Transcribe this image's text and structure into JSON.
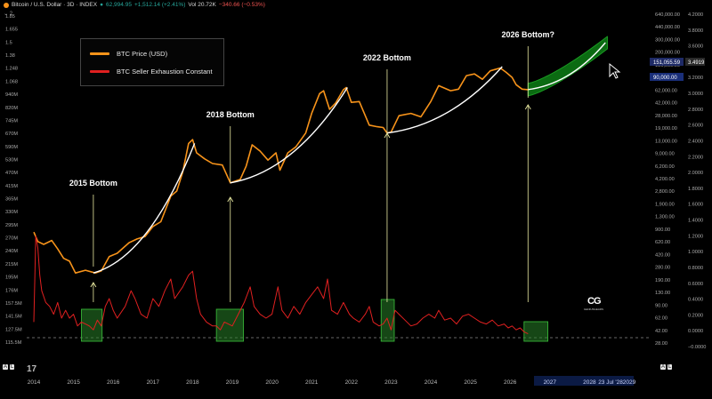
{
  "header": {
    "symbol": "Bitcoin / U.S. Dollar · 3D · INDEX",
    "last": "62,994.95",
    "change": "+1,512.14 (+2.41%)",
    "vol": "Vol 20.72K",
    "vol_change": "−340.66 (−0.53%)",
    "sub": "⌄ 2"
  },
  "legend": {
    "price": "BTC Price (USD)",
    "sec": "BTC Seller Exhaustion Constant"
  },
  "bottom_left": [
    "A",
    "L"
  ],
  "bottom_right": [
    "A",
    "L"
  ],
  "tv_logo": "17",
  "watermark": {
    "mark": "CG",
    "sub": "GENIUSGEARS"
  },
  "colors": {
    "price": "#f7931a",
    "sec": "#e02020",
    "fit": "#ffffff",
    "arrow": "#e8e8a0",
    "box": "#2e8b2e",
    "projection": "#0b6b12",
    "bg": "#000000"
  },
  "chart_data": {
    "type": "line",
    "title": "",
    "x_ticks": [
      "2014",
      "2015",
      "2016",
      "2017",
      "2018",
      "2019",
      "2020",
      "2021",
      "2022",
      "2023",
      "2024",
      "2025",
      "2026",
      "2027",
      "2028",
      "2029"
    ],
    "x_tick_time_label": "23 Jul '28",
    "y_left_ticks": [
      "1.85",
      "1.655",
      "1.5",
      "1.38",
      "1.248",
      "1.068",
      "940M",
      "820M",
      "745M",
      "670M",
      "590M",
      "530M",
      "470M",
      "415M",
      "365M",
      "330M",
      "295M",
      "270M",
      "240M",
      "215M",
      "195M",
      "176M",
      "157.5M",
      "141.5M",
      "127.5M",
      "115.5M"
    ],
    "y_price_ticks": [
      "640,000.00",
      "440,000.00",
      "300,000.00",
      "200,000.00",
      "136,000.00",
      "90,000.00",
      "62,000.00",
      "42,000.00",
      "28,000.00",
      "19,000.00",
      "13,000.00",
      "9,000.00",
      "6,200.00",
      "4,200.00",
      "2,800.00",
      "1,900.00",
      "1,300.00",
      "900.00",
      "620.00",
      "420.00",
      "280.00",
      "190.00",
      "130.00",
      "90.00",
      "62.00",
      "42.00",
      "28.00"
    ],
    "y_sec_ticks": [
      "4.2000",
      "3.8000",
      "3.6000",
      "3.4000",
      "3.2000",
      "3.0000",
      "2.8000",
      "2.6000",
      "2.4000",
      "2.2000",
      "2.0000",
      "1.8000",
      "1.6000",
      "1.4000",
      "1.2000",
      "1.0000",
      "0.8000",
      "0.6000",
      "0.4000",
      "0.2000",
      "0.0000",
      "−0.0000"
    ],
    "price_badge": "151,055.59",
    "price_badge2": "90,000.00",
    "sec_badge": "3.4919",
    "series": [
      {
        "name": "BTC Price (USD)",
        "color": "#f7931a",
        "points": [
          [
            2014.0,
            800
          ],
          [
            2014.1,
            600
          ],
          [
            2014.25,
            550
          ],
          [
            2014.45,
            620
          ],
          [
            2014.6,
            480
          ],
          [
            2014.75,
            360
          ],
          [
            2014.9,
            330
          ],
          [
            2015.05,
            230
          ],
          [
            2015.3,
            250
          ],
          [
            2015.55,
            230
          ],
          [
            2015.7,
            245
          ],
          [
            2015.9,
            380
          ],
          [
            2016.1,
            420
          ],
          [
            2016.4,
            580
          ],
          [
            2016.6,
            650
          ],
          [
            2016.8,
            700
          ],
          [
            2017.0,
            950
          ],
          [
            2017.2,
            1100
          ],
          [
            2017.45,
            2400
          ],
          [
            2017.6,
            2800
          ],
          [
            2017.75,
            5000
          ],
          [
            2017.9,
            12000
          ],
          [
            2018.0,
            13500
          ],
          [
            2018.1,
            9000
          ],
          [
            2018.3,
            7500
          ],
          [
            2018.5,
            6500
          ],
          [
            2018.75,
            6200
          ],
          [
            2018.95,
            3600
          ],
          [
            2019.2,
            4000
          ],
          [
            2019.35,
            6000
          ],
          [
            2019.5,
            11500
          ],
          [
            2019.7,
            9500
          ],
          [
            2019.9,
            7200
          ],
          [
            2020.1,
            9000
          ],
          [
            2020.2,
            5300
          ],
          [
            2020.4,
            9000
          ],
          [
            2020.6,
            10800
          ],
          [
            2020.85,
            16500
          ],
          [
            2021.0,
            30000
          ],
          [
            2021.2,
            55000
          ],
          [
            2021.3,
            60000
          ],
          [
            2021.45,
            34000
          ],
          [
            2021.6,
            41000
          ],
          [
            2021.8,
            62000
          ],
          [
            2021.87,
            66000
          ],
          [
            2022.0,
            42000
          ],
          [
            2022.2,
            43000
          ],
          [
            2022.45,
            21000
          ],
          [
            2022.65,
            20000
          ],
          [
            2022.8,
            19500
          ],
          [
            2022.9,
            16500
          ],
          [
            2023.0,
            17000
          ],
          [
            2023.2,
            28000
          ],
          [
            2023.5,
            30000
          ],
          [
            2023.75,
            27000
          ],
          [
            2024.0,
            43000
          ],
          [
            2024.2,
            70000
          ],
          [
            2024.5,
            60000
          ],
          [
            2024.7,
            63000
          ],
          [
            2024.9,
            95000
          ],
          [
            2025.1,
            100000
          ],
          [
            2025.3,
            85000
          ],
          [
            2025.5,
            110000
          ],
          [
            2025.75,
            120000
          ],
          [
            2025.9,
            105000
          ],
          [
            2026.05,
            90000
          ],
          [
            2026.15,
            72000
          ],
          [
            2026.3,
            63000
          ],
          [
            2026.45,
            62000
          ]
        ]
      },
      {
        "name": "BTC Seller Exhaustion Constant",
        "color": "#e02020",
        "points": [
          [
            2014.0,
            0.4
          ],
          [
            2014.05,
            2.6
          ],
          [
            2014.1,
            2.3
          ],
          [
            2014.15,
            1.6
          ],
          [
            2014.2,
            1.2
          ],
          [
            2014.3,
            0.9
          ],
          [
            2014.4,
            0.8
          ],
          [
            2014.5,
            0.6
          ],
          [
            2014.6,
            0.9
          ],
          [
            2014.7,
            0.5
          ],
          [
            2014.8,
            0.7
          ],
          [
            2014.9,
            0.5
          ],
          [
            2015.0,
            0.6
          ],
          [
            2015.1,
            0.3
          ],
          [
            2015.2,
            0.4
          ],
          [
            2015.3,
            0.35
          ],
          [
            2015.4,
            0.3
          ],
          [
            2015.5,
            0.2
          ],
          [
            2015.6,
            0.45
          ],
          [
            2015.7,
            0.3
          ],
          [
            2015.8,
            0.8
          ],
          [
            2015.9,
            1.0
          ],
          [
            2016.0,
            0.7
          ],
          [
            2016.1,
            0.5
          ],
          [
            2016.3,
            0.8
          ],
          [
            2016.45,
            1.2
          ],
          [
            2016.55,
            1.0
          ],
          [
            2016.7,
            0.6
          ],
          [
            2016.85,
            0.5
          ],
          [
            2017.0,
            1.0
          ],
          [
            2017.15,
            0.8
          ],
          [
            2017.3,
            1.2
          ],
          [
            2017.45,
            1.5
          ],
          [
            2017.55,
            1.0
          ],
          [
            2017.75,
            1.3
          ],
          [
            2017.9,
            1.6
          ],
          [
            2018.0,
            1.7
          ],
          [
            2018.1,
            1.0
          ],
          [
            2018.2,
            0.6
          ],
          [
            2018.35,
            0.4
          ],
          [
            2018.5,
            0.3
          ],
          [
            2018.6,
            0.3
          ],
          [
            2018.7,
            0.2
          ],
          [
            2018.8,
            0.4
          ],
          [
            2018.9,
            0.35
          ],
          [
            2019.0,
            0.3
          ],
          [
            2019.15,
            0.6
          ],
          [
            2019.3,
            0.9
          ],
          [
            2019.45,
            1.3
          ],
          [
            2019.55,
            0.8
          ],
          [
            2019.7,
            0.6
          ],
          [
            2019.85,
            0.5
          ],
          [
            2020.0,
            0.6
          ],
          [
            2020.15,
            1.3
          ],
          [
            2020.25,
            0.7
          ],
          [
            2020.4,
            0.5
          ],
          [
            2020.55,
            0.8
          ],
          [
            2020.7,
            0.6
          ],
          [
            2020.85,
            0.9
          ],
          [
            2021.0,
            1.1
          ],
          [
            2021.15,
            1.3
          ],
          [
            2021.3,
            1.0
          ],
          [
            2021.4,
            1.5
          ],
          [
            2021.5,
            0.7
          ],
          [
            2021.65,
            0.6
          ],
          [
            2021.8,
            0.9
          ],
          [
            2021.95,
            0.6
          ],
          [
            2022.05,
            0.5
          ],
          [
            2022.2,
            0.4
          ],
          [
            2022.35,
            0.6
          ],
          [
            2022.45,
            0.8
          ],
          [
            2022.55,
            0.4
          ],
          [
            2022.7,
            0.3
          ],
          [
            2022.8,
            0.35
          ],
          [
            2022.9,
            0.5
          ],
          [
            2023.0,
            0.2
          ],
          [
            2023.1,
            0.7
          ],
          [
            2023.2,
            0.6
          ],
          [
            2023.35,
            0.45
          ],
          [
            2023.5,
            0.3
          ],
          [
            2023.65,
            0.35
          ],
          [
            2023.8,
            0.5
          ],
          [
            2023.95,
            0.6
          ],
          [
            2024.1,
            0.5
          ],
          [
            2024.2,
            0.7
          ],
          [
            2024.35,
            0.45
          ],
          [
            2024.5,
            0.5
          ],
          [
            2024.65,
            0.35
          ],
          [
            2024.8,
            0.55
          ],
          [
            2024.95,
            0.6
          ],
          [
            2025.1,
            0.5
          ],
          [
            2025.25,
            0.4
          ],
          [
            2025.4,
            0.35
          ],
          [
            2025.55,
            0.45
          ],
          [
            2025.7,
            0.3
          ],
          [
            2025.85,
            0.35
          ],
          [
            2025.95,
            0.25
          ],
          [
            2026.05,
            0.3
          ],
          [
            2026.15,
            0.2
          ],
          [
            2026.25,
            0.25
          ],
          [
            2026.35,
            0.15
          ],
          [
            2026.45,
            0.1
          ]
        ]
      }
    ],
    "annotations": [
      {
        "label": "2015 Bottom",
        "year": 2015.5
      },
      {
        "label": "2018 Bottom",
        "year": 2018.95
      },
      {
        "label": "2022 Bottom",
        "year": 2022.9
      },
      {
        "label": "2026 Bottom?",
        "year": 2026.45
      }
    ],
    "highlight_boxes": [
      {
        "x_from": 2015.2,
        "x_to": 2015.72
      },
      {
        "x_from": 2018.6,
        "x_to": 2019.28
      },
      {
        "x_from": 2022.75,
        "x_to": 2023.08
      },
      {
        "x_from": 2026.35,
        "x_to": 2026.95
      }
    ],
    "fit_curves": [
      {
        "from": [
          2015.5,
          230
        ],
        "to": [
          2018.05,
          12000
        ]
      },
      {
        "from": [
          2018.95,
          3600
        ],
        "to": [
          2021.9,
          66000
        ]
      },
      {
        "from": [
          2022.9,
          16500
        ],
        "to": [
          2025.8,
          125000
        ]
      },
      {
        "from": [
          2026.45,
          62000
        ],
        "to": [
          2028.4,
          260000
        ]
      }
    ],
    "projection": {
      "from": 2026.45,
      "to": 2028.45
    },
    "sec_baseline": 0.0
  }
}
